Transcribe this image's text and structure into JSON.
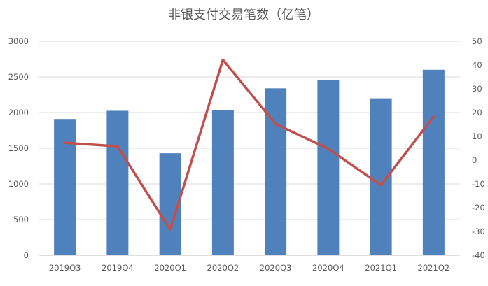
{
  "chart_data": {
    "type": "bar+line",
    "title": "非银支付交易笔数（亿笔）",
    "categories": [
      "2019Q3",
      "2019Q4",
      "2020Q1",
      "2020Q2",
      "2020Q3",
      "2020Q4",
      "2021Q1",
      "2021Q2"
    ],
    "series": [
      {
        "type": "bar",
        "axis": "left",
        "color": "#4f81bd",
        "values": [
          1910,
          2025,
          1430,
          2035,
          2340,
          2455,
          2200,
          2600
        ]
      },
      {
        "type": "line",
        "axis": "right",
        "color": "#c0504d",
        "values": [
          7.3,
          5.8,
          -29.3,
          42.2,
          15.2,
          4.8,
          -10.5,
          18.3
        ]
      }
    ],
    "y_left": {
      "min": 0,
      "max": 3000,
      "step": 500,
      "ticks": [
        "0",
        "500",
        "1000",
        "1500",
        "2000",
        "2500",
        "3000"
      ]
    },
    "y_right": {
      "min": -40,
      "max": 50,
      "step": 10,
      "ticks": [
        "-40",
        "-30",
        "-20",
        "-10",
        "0",
        "10",
        "20",
        "30",
        "40",
        "50"
      ]
    },
    "grid": true,
    "legend": "none"
  }
}
